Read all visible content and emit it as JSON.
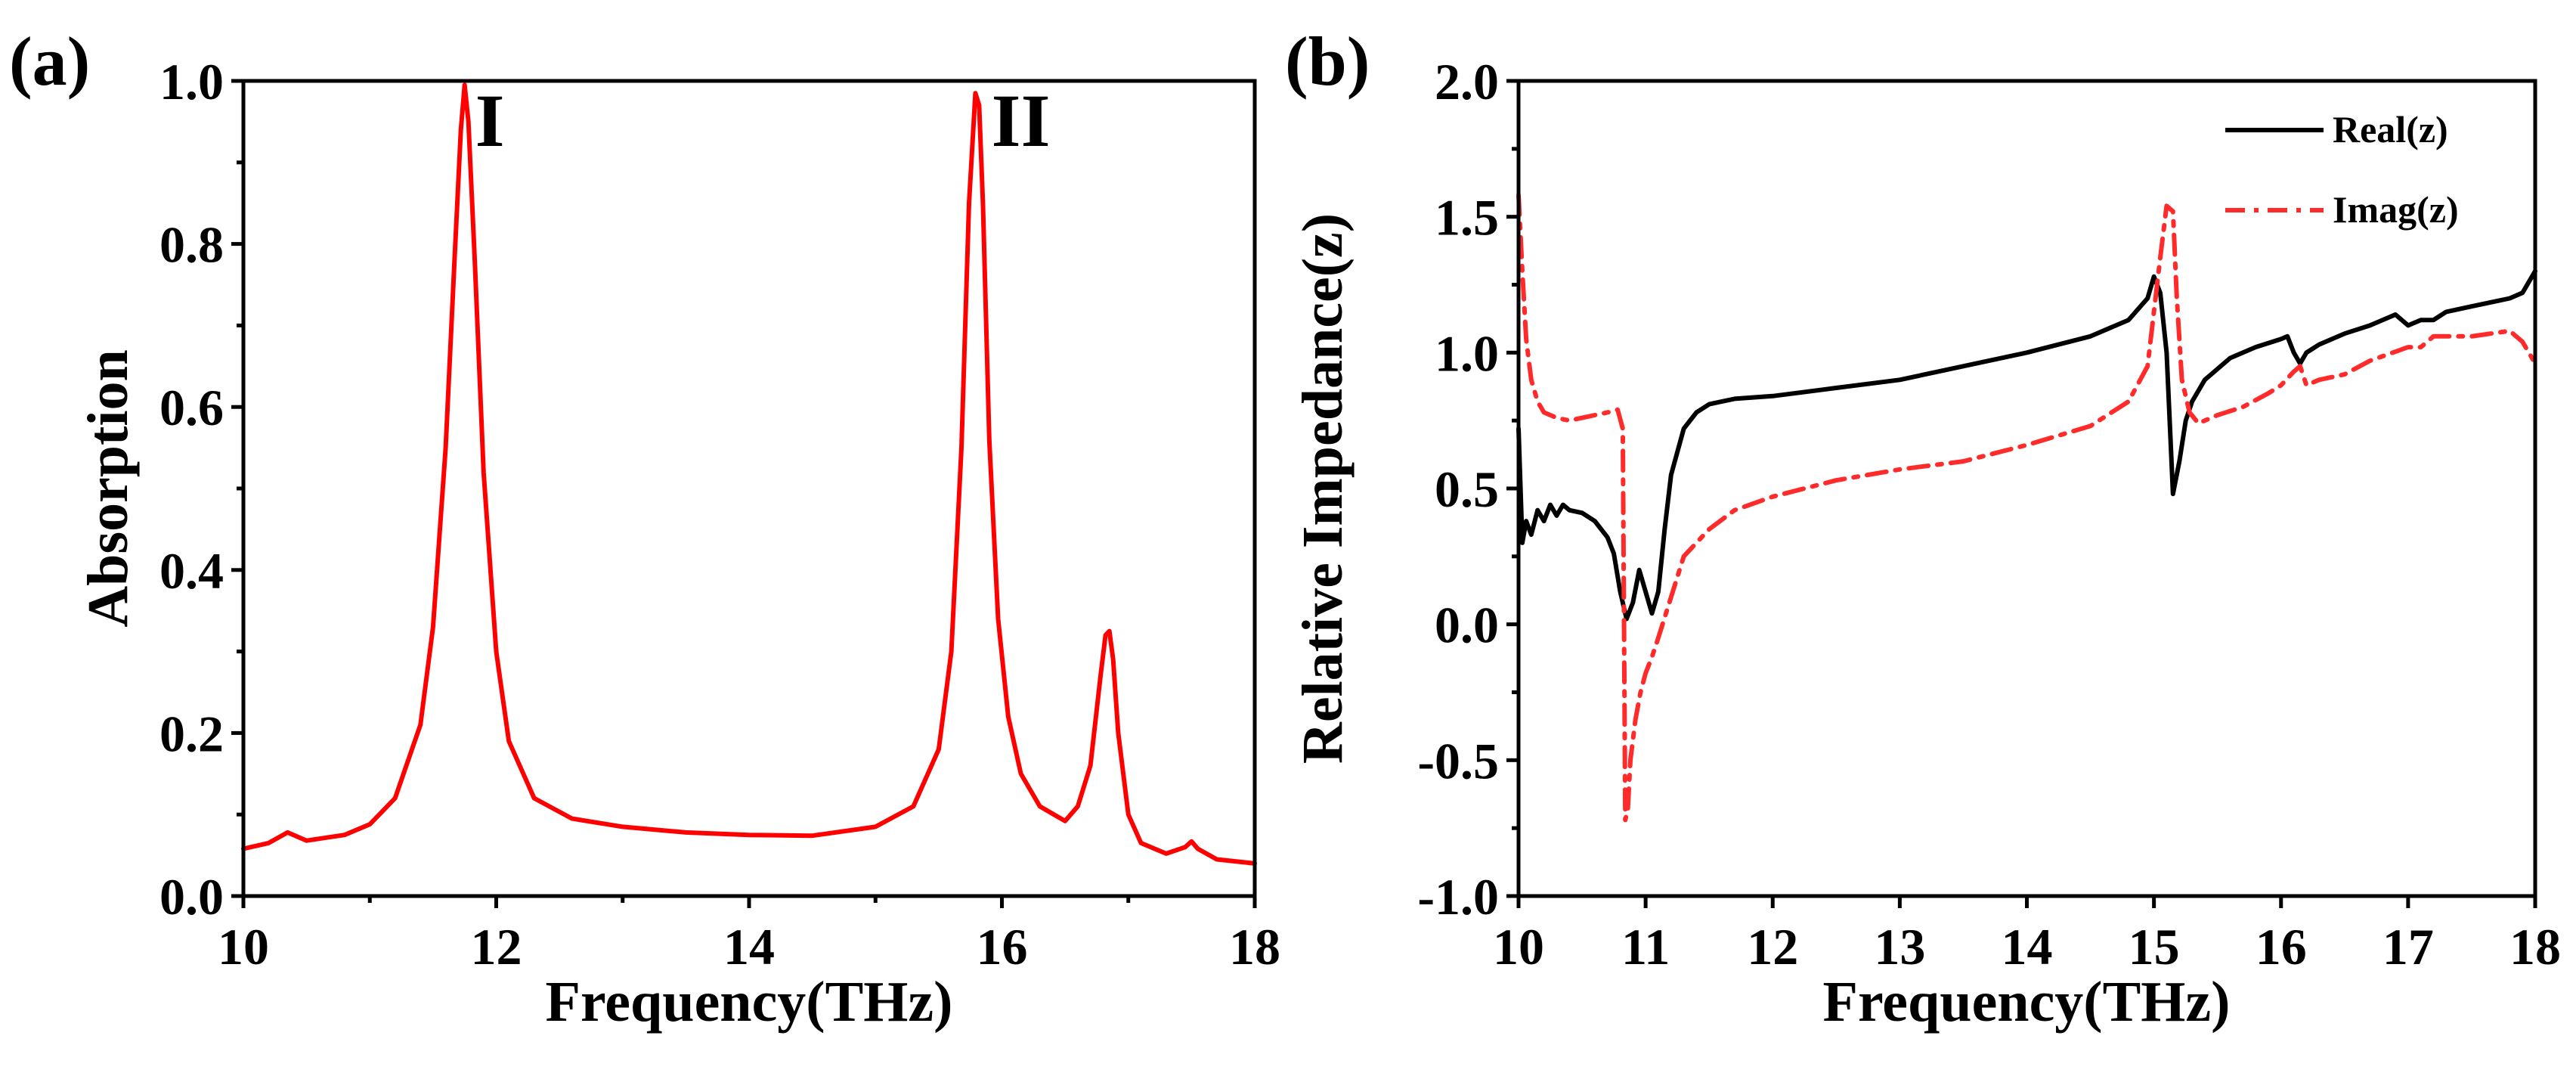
{
  "chart_data": [
    {
      "type": "line",
      "panel_label": "(a)",
      "xlabel": "Frequency(THz)",
      "ylabel": "Absorption",
      "xlim": [
        10,
        18
      ],
      "ylim": [
        0.0,
        1.0
      ],
      "xticks": [
        10,
        12,
        14,
        16,
        18
      ],
      "xtick_labels": [
        "10",
        "12",
        "14",
        "16",
        "18"
      ],
      "yticks": [
        0.0,
        0.2,
        0.4,
        0.6,
        0.8,
        1.0
      ],
      "ytick_labels": [
        "0.0",
        "0.2",
        "0.4",
        "0.6",
        "0.8",
        "1.0"
      ],
      "grid": false,
      "annotations": [
        {
          "text": "I",
          "x": 11.95,
          "y": 0.95
        },
        {
          "text": "II",
          "x": 16.15,
          "y": 0.95
        }
      ],
      "series": [
        {
          "name": "Absorption",
          "color": "#ff0000",
          "style": "solid",
          "x": [
            10.0,
            10.2,
            10.35,
            10.5,
            10.8,
            11.0,
            11.2,
            11.4,
            11.5,
            11.6,
            11.67,
            11.72,
            11.75,
            11.78,
            11.83,
            11.9,
            12.0,
            12.1,
            12.3,
            12.6,
            13.0,
            13.5,
            14.0,
            14.5,
            15.0,
            15.3,
            15.5,
            15.6,
            15.68,
            15.74,
            15.79,
            15.82,
            15.85,
            15.9,
            15.97,
            16.05,
            16.15,
            16.3,
            16.5,
            16.6,
            16.7,
            16.78,
            16.82,
            16.85,
            16.88,
            16.92,
            17.0,
            17.1,
            17.3,
            17.45,
            17.5,
            17.55,
            17.7,
            18.0
          ],
          "y": [
            0.058,
            0.065,
            0.078,
            0.068,
            0.075,
            0.088,
            0.12,
            0.21,
            0.33,
            0.55,
            0.78,
            0.94,
            0.995,
            0.95,
            0.78,
            0.52,
            0.3,
            0.19,
            0.12,
            0.095,
            0.085,
            0.078,
            0.075,
            0.074,
            0.085,
            0.11,
            0.18,
            0.3,
            0.55,
            0.85,
            0.985,
            0.97,
            0.85,
            0.56,
            0.34,
            0.22,
            0.15,
            0.11,
            0.092,
            0.11,
            0.16,
            0.27,
            0.32,
            0.325,
            0.29,
            0.2,
            0.1,
            0.065,
            0.052,
            0.06,
            0.067,
            0.058,
            0.045,
            0.04
          ]
        }
      ]
    },
    {
      "type": "line",
      "panel_label": "(b)",
      "xlabel": "Frequency(THz)",
      "ylabel": "Relative Impedance(z)",
      "xlim": [
        10,
        18
      ],
      "ylim": [
        -1.0,
        2.0
      ],
      "xticks": [
        10,
        11,
        12,
        13,
        14,
        15,
        16,
        17,
        18
      ],
      "xtick_labels": [
        "10",
        "11",
        "12",
        "13",
        "14",
        "15",
        "16",
        "17",
        "18"
      ],
      "yticks": [
        -1.0,
        -0.5,
        0.0,
        0.5,
        1.0,
        1.5,
        2.0
      ],
      "ytick_labels": [
        "-1.0",
        "-0.5",
        "0.0",
        "0.5",
        "1.0",
        "1.5",
        "2.0"
      ],
      "grid": false,
      "legend_position": "top-right",
      "series": [
        {
          "name": "Real(z)",
          "color": "#000000",
          "style": "solid",
          "x": [
            10.0,
            10.03,
            10.06,
            10.1,
            10.15,
            10.2,
            10.25,
            10.3,
            10.35,
            10.4,
            10.5,
            10.6,
            10.7,
            10.75,
            10.8,
            10.85,
            10.9,
            10.95,
            11.0,
            11.05,
            11.1,
            11.15,
            11.2,
            11.3,
            11.4,
            11.5,
            11.7,
            12.0,
            12.5,
            13.0,
            13.5,
            14.0,
            14.5,
            14.8,
            14.95,
            15.0,
            15.05,
            15.1,
            15.15,
            15.2,
            15.25,
            15.3,
            15.4,
            15.6,
            15.8,
            16.0,
            16.05,
            16.1,
            16.15,
            16.2,
            16.3,
            16.5,
            16.7,
            16.9,
            17.0,
            17.1,
            17.2,
            17.3,
            17.5,
            17.8,
            17.9,
            18.0
          ],
          "y": [
            0.72,
            0.3,
            0.38,
            0.33,
            0.42,
            0.38,
            0.44,
            0.4,
            0.44,
            0.42,
            0.41,
            0.38,
            0.32,
            0.26,
            0.12,
            0.02,
            0.08,
            0.2,
            0.12,
            0.04,
            0.12,
            0.35,
            0.55,
            0.72,
            0.78,
            0.81,
            0.83,
            0.84,
            0.87,
            0.9,
            0.95,
            1.0,
            1.06,
            1.12,
            1.2,
            1.28,
            1.22,
            1.0,
            0.48,
            0.6,
            0.75,
            0.82,
            0.9,
            0.98,
            1.02,
            1.05,
            1.06,
            1.0,
            0.96,
            1.0,
            1.03,
            1.07,
            1.1,
            1.14,
            1.1,
            1.12,
            1.12,
            1.15,
            1.17,
            1.2,
            1.22,
            1.3
          ]
        },
        {
          "name": "Imag(z)",
          "color": "#ff2a2a",
          "style": "dash-dot",
          "x": [
            10.0,
            10.03,
            10.06,
            10.1,
            10.15,
            10.2,
            10.3,
            10.4,
            10.5,
            10.6,
            10.7,
            10.78,
            10.82,
            10.84,
            10.86,
            10.88,
            10.92,
            10.96,
            11.0,
            11.05,
            11.1,
            11.2,
            11.3,
            11.5,
            11.7,
            12.0,
            12.5,
            13.0,
            13.5,
            14.0,
            14.5,
            14.8,
            14.95,
            15.05,
            15.1,
            15.15,
            15.18,
            15.22,
            15.28,
            15.35,
            15.5,
            15.7,
            15.9,
            16.0,
            16.1,
            16.15,
            16.2,
            16.3,
            16.5,
            16.7,
            17.0,
            17.1,
            17.2,
            17.5,
            17.8,
            17.9,
            18.0
          ],
          "y": [
            1.58,
            1.3,
            1.05,
            0.9,
            0.82,
            0.78,
            0.76,
            0.75,
            0.76,
            0.77,
            0.78,
            0.79,
            0.72,
            -0.72,
            -0.68,
            -0.5,
            -0.35,
            -0.25,
            -0.18,
            -0.12,
            -0.05,
            0.1,
            0.25,
            0.35,
            0.42,
            0.47,
            0.53,
            0.57,
            0.6,
            0.66,
            0.73,
            0.82,
            0.95,
            1.35,
            1.54,
            1.52,
            1.2,
            0.9,
            0.78,
            0.74,
            0.77,
            0.8,
            0.85,
            0.88,
            0.93,
            0.95,
            0.88,
            0.9,
            0.92,
            0.97,
            1.02,
            1.02,
            1.06,
            1.06,
            1.08,
            1.04,
            0.96
          ]
        }
      ]
    }
  ]
}
